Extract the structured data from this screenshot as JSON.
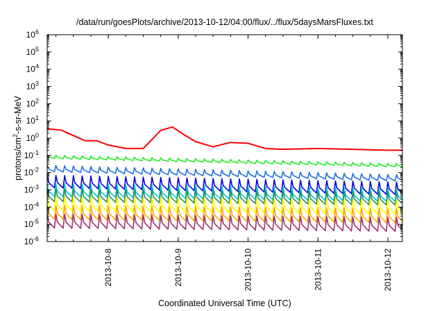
{
  "chart_data": {
    "type": "line",
    "title": "/data/run/goesPlots/archive/2013-10-12/04:00/flux/../flux/5daysMarsFluxes.txt",
    "xlabel": "Coordinated Universal Time (UTC)",
    "ylabel": {
      "base": "protons/cm",
      "sup": "2",
      "rest": "-s-sr-MeV"
    },
    "yscale": "log",
    "ylim_exp": [
      -6,
      6
    ],
    "y_ticks": [
      {
        "base": "10",
        "exp": "-6"
      },
      {
        "base": "10",
        "exp": "-5"
      },
      {
        "base": "10",
        "exp": "-4"
      },
      {
        "base": "10",
        "exp": "-3"
      },
      {
        "base": "10",
        "exp": "-2"
      },
      {
        "base": "10",
        "exp": "-1"
      },
      {
        "base": "10",
        "exp": "0"
      },
      {
        "base": "10",
        "exp": "1"
      },
      {
        "base": "10",
        "exp": "2"
      },
      {
        "base": "10",
        "exp": "3"
      },
      {
        "base": "10",
        "exp": "4"
      },
      {
        "base": "10",
        "exp": "5"
      },
      {
        "base": "10",
        "exp": "6"
      }
    ],
    "xlim": [
      "2013-10-07 03:00",
      "2013-10-12 05:00"
    ],
    "x_ticks": [
      {
        "label": "2013-10-8",
        "at": "2013-10-08 00:00"
      },
      {
        "label": "2013-10-9",
        "at": "2013-10-09 00:00"
      },
      {
        "label": "2013-10-10",
        "at": "2013-10-10 00:00"
      },
      {
        "label": "2013-10-11",
        "at": "2013-10-11 00:00"
      },
      {
        "label": "2013-10-12",
        "at": "2013-10-12 00:00"
      }
    ],
    "grid": false,
    "series": [
      {
        "color": "#ff0000",
        "approx_values_log10": [
          [
            "2013-10-07 03:00",
            0.55
          ],
          [
            "2013-10-07 08:00",
            0.45
          ],
          [
            "2013-10-07 12:00",
            0.15
          ],
          [
            "2013-10-07 16:00",
            -0.15
          ],
          [
            "2013-10-07 20:00",
            -0.15
          ],
          [
            "2013-10-08 00:00",
            -0.4
          ],
          [
            "2013-10-08 06:00",
            -0.6
          ],
          [
            "2013-10-08 12:00",
            -0.6
          ],
          [
            "2013-10-08 18:00",
            0.45
          ],
          [
            "2013-10-08 22:00",
            0.65
          ],
          [
            "2013-10-09 02:00",
            0.2
          ],
          [
            "2013-10-09 06:00",
            -0.2
          ],
          [
            "2013-10-09 12:00",
            -0.5
          ],
          [
            "2013-10-09 18:00",
            -0.25
          ],
          [
            "2013-10-10 00:00",
            -0.3
          ],
          [
            "2013-10-10 06:00",
            -0.6
          ],
          [
            "2013-10-10 12:00",
            -0.65
          ],
          [
            "2013-10-11 00:00",
            -0.6
          ],
          [
            "2013-10-11 12:00",
            -0.65
          ],
          [
            "2013-10-12 00:00",
            -0.7
          ],
          [
            "2013-10-12 05:00",
            -0.7
          ]
        ]
      },
      {
        "color": "#22ee22",
        "approx_values_log10": [
          [
            "2013-10-07 03:00",
            -1.1
          ],
          [
            "2013-10-12 05:00",
            -1.6
          ]
        ]
      },
      {
        "color": "#1e6fe0",
        "approx_values_log10": [
          [
            "2013-10-07 03:00",
            -1.8
          ],
          [
            "2013-10-12 05:00",
            -2.35
          ]
        ]
      },
      {
        "color": "#0000e0",
        "approx_values_log10": [
          [
            "2013-10-07 03:00",
            -2.6
          ],
          [
            "2013-10-12 05:00",
            -3.0
          ]
        ]
      },
      {
        "color": "#00c8d8",
        "approx_values_log10": [
          [
            "2013-10-07 03:00",
            -3.1
          ],
          [
            "2013-10-12 05:00",
            -3.4
          ]
        ]
      },
      {
        "color": "#2e8b57",
        "approx_values_log10": [
          [
            "2013-10-07 03:00",
            -3.4
          ],
          [
            "2013-10-12 05:00",
            -3.6
          ]
        ]
      },
      {
        "color": "#ffff00",
        "approx_values_log10": [
          [
            "2013-10-07 03:00",
            -3.9
          ],
          [
            "2013-10-12 05:00",
            -4.1
          ]
        ]
      },
      {
        "color": "#ffa500",
        "approx_values_log10": [
          [
            "2013-10-07 03:00",
            -4.4
          ],
          [
            "2013-10-12 05:00",
            -4.6
          ]
        ]
      },
      {
        "color": "#a0306e",
        "approx_values_log10": [
          [
            "2013-10-07 03:00",
            -4.9
          ],
          [
            "2013-10-12 05:00",
            -5.1
          ]
        ]
      }
    ]
  }
}
